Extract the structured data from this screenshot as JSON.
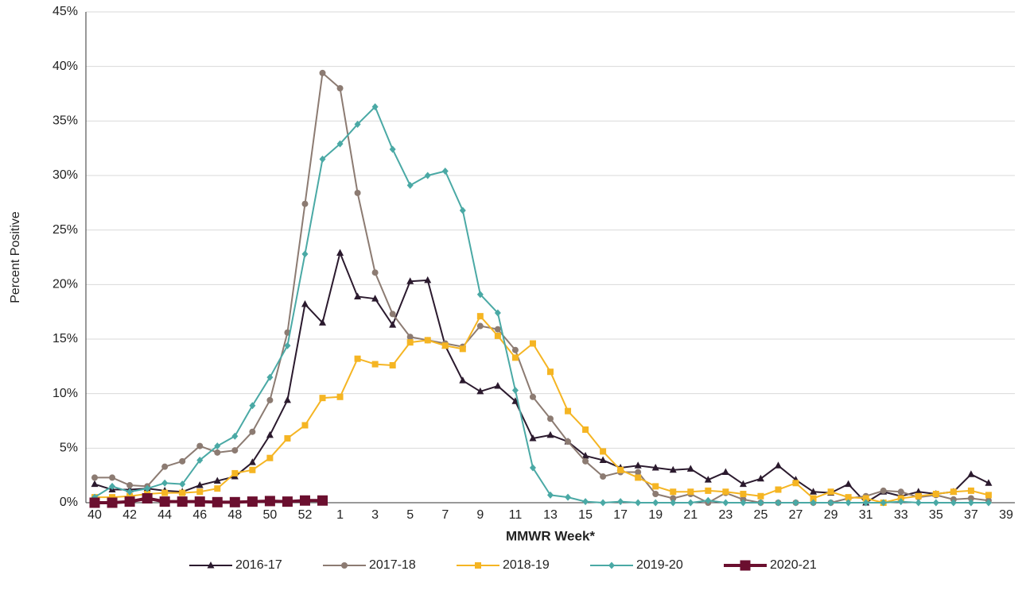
{
  "chart_data": {
    "type": "line",
    "x_label": "MMWR Week*",
    "y_label": "Percent Positive",
    "categories": [
      "40",
      null,
      "42",
      null,
      "44",
      null,
      "46",
      null,
      "48",
      null,
      "50",
      null,
      "52",
      null,
      "1",
      null,
      "3",
      null,
      "5",
      null,
      "7",
      null,
      "9",
      null,
      "11",
      null,
      "13",
      null,
      "15",
      null,
      "17",
      null,
      "19",
      null,
      "21",
      null,
      "23",
      null,
      "25",
      null,
      "27",
      null,
      "29",
      null,
      "31",
      null,
      "33",
      null,
      "35",
      null,
      "37",
      null,
      "39"
    ],
    "ylim": [
      0,
      45
    ],
    "yticks": [
      {
        "value": 0,
        "label": "0%"
      },
      {
        "value": 5,
        "label": "5%"
      },
      {
        "value": 10,
        "label": "10%"
      },
      {
        "value": 15,
        "label": "15%"
      },
      {
        "value": 20,
        "label": "20%"
      },
      {
        "value": 25,
        "label": "25%"
      },
      {
        "value": 30,
        "label": "30%"
      },
      {
        "value": 35,
        "label": "35%"
      },
      {
        "value": 40,
        "label": "40%"
      },
      {
        "value": 45,
        "label": "45%"
      }
    ],
    "grid": true,
    "legend": "bottom",
    "series": [
      {
        "name": "2016-17",
        "color": "#2b1a2e",
        "marker": "triangle",
        "values": [
          1.7,
          1.2,
          1.2,
          1.3,
          1.1,
          1.0,
          1.6,
          2.0,
          2.4,
          3.7,
          6.2,
          9.4,
          18.2,
          16.5,
          22.9,
          18.9,
          18.7,
          16.3,
          20.3,
          20.4,
          14.4,
          11.2,
          10.2,
          10.7,
          9.3,
          5.9,
          6.2,
          5.6,
          4.3,
          3.9,
          3.2,
          3.4,
          3.2,
          3.0,
          3.1,
          2.1,
          2.8,
          1.7,
          2.2,
          3.4,
          2.1,
          1.0,
          0.9,
          1.7,
          0.0,
          1.0,
          0.6,
          1.0,
          0.8,
          1.0,
          2.6,
          1.8,
          null
        ]
      },
      {
        "name": "2017-18",
        "color": "#8c7b72",
        "marker": "circle",
        "values": [
          2.3,
          2.3,
          1.6,
          1.5,
          3.3,
          3.8,
          5.2,
          4.6,
          4.8,
          6.5,
          9.4,
          15.6,
          27.4,
          39.4,
          38.0,
          28.4,
          21.1,
          17.3,
          15.2,
          14.9,
          14.6,
          14.3,
          16.2,
          15.9,
          14.0,
          9.7,
          7.7,
          5.6,
          3.8,
          2.4,
          2.8,
          2.8,
          0.8,
          0.4,
          0.8,
          0.0,
          0.9,
          0.3,
          0.0,
          0.0,
          0.0,
          0.0,
          0.0,
          0.4,
          0.6,
          1.1,
          1.0,
          0.5,
          0.7,
          0.3,
          0.4,
          0.2,
          null
        ]
      },
      {
        "name": "2018-19",
        "color": "#f5b523",
        "marker": "square",
        "values": [
          0.5,
          0.5,
          0.6,
          0.8,
          0.9,
          0.9,
          1.0,
          1.3,
          2.7,
          3.0,
          4.1,
          5.9,
          7.1,
          9.6,
          9.7,
          13.2,
          12.7,
          12.6,
          14.7,
          14.9,
          14.4,
          14.1,
          17.1,
          15.3,
          13.3,
          14.6,
          12.0,
          8.4,
          6.7,
          4.7,
          3.0,
          2.3,
          1.5,
          1.0,
          1.0,
          1.1,
          1.0,
          0.8,
          0.6,
          1.2,
          1.8,
          0.4,
          1.0,
          0.5,
          0.4,
          0.0,
          0.4,
          0.6,
          0.8,
          1.0,
          1.1,
          0.7,
          null
        ]
      },
      {
        "name": "2019-20",
        "color": "#4aa9a5",
        "marker": "diamond",
        "values": [
          0.5,
          1.5,
          1.0,
          1.3,
          1.8,
          1.7,
          3.9,
          5.2,
          6.1,
          8.9,
          11.5,
          14.4,
          22.8,
          31.5,
          32.9,
          34.7,
          36.3,
          32.4,
          29.1,
          30.0,
          30.4,
          26.8,
          19.1,
          17.4,
          10.3,
          3.2,
          0.7,
          0.5,
          0.1,
          0.0,
          0.1,
          0.0,
          0.0,
          0.0,
          0.0,
          0.2,
          0.0,
          0.0,
          0.0,
          0.0,
          0.0,
          0.0,
          0.0,
          0.0,
          0.0,
          0.0,
          0.1,
          0.0,
          0.0,
          0.0,
          0.0,
          0.0,
          null
        ]
      },
      {
        "name": "2020-21",
        "color": "#6b0f2f",
        "marker": "bigsquare",
        "values": [
          0.0,
          0.0,
          0.1,
          0.4,
          0.1,
          0.1,
          0.1,
          0.05,
          0.05,
          0.1,
          0.15,
          0.1,
          0.2,
          0.2,
          null,
          null,
          null,
          null,
          null,
          null,
          null,
          null,
          null,
          null,
          null,
          null,
          null,
          null,
          null,
          null,
          null,
          null,
          null,
          null,
          null,
          null,
          null,
          null,
          null,
          null,
          null,
          null,
          null,
          null,
          null,
          null,
          null,
          null,
          null,
          null,
          null,
          null,
          null
        ]
      }
    ]
  }
}
